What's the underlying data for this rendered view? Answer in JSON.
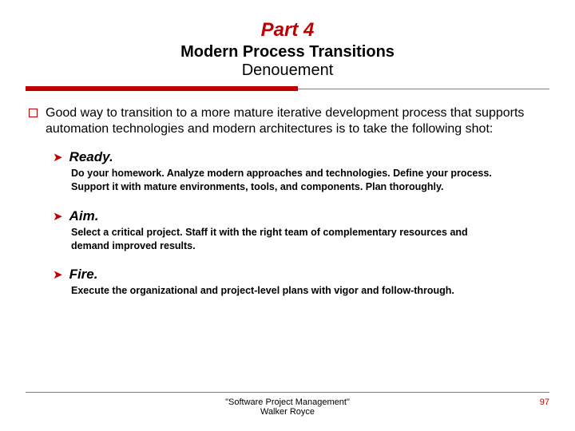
{
  "colors": {
    "accent": "#c00000",
    "text": "#000000",
    "rule_thin": "#808080",
    "background": "#ffffff"
  },
  "header": {
    "part": "Part 4",
    "title": "Modern Process Transitions",
    "subtitle": "Denouement"
  },
  "intro": "Good way to transition to a more mature iterative development process that supports automation technologies and modern architectures is to take the following shot:",
  "items": [
    {
      "title": "Ready.",
      "body": "Do your homework. Analyze modern approaches and technologies. Define your process. Support it with mature environments, tools, and components. Plan thoroughly."
    },
    {
      "title": "Aim.",
      "body": "Select a critical project. Staff it with the right team of complementary resources and demand improved results."
    },
    {
      "title": "Fire.",
      "body": "Execute the organizational and project-level plans with vigor and follow-through."
    }
  ],
  "footer": {
    "source_line1": "\"Software Project Management\"",
    "source_line2": "Walker Royce",
    "page": "97"
  },
  "typography": {
    "part_fontsize": 24,
    "subtitle_fontsize": 20,
    "intro_fontsize": 16,
    "item_title_fontsize": 17,
    "item_body_fontsize": 12.5,
    "footer_fontsize": 11
  }
}
